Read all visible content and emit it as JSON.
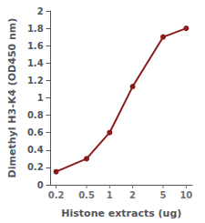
{
  "chart_data": {
    "type": "line",
    "xlabel": "Histone extracts (ug)",
    "ylabel": "Dimethyl H3-K4 (OD450 nm)",
    "x": [
      0.2,
      0.5,
      1,
      2,
      5,
      10
    ],
    "values": [
      0.15,
      0.3,
      0.6,
      1.13,
      1.7,
      1.8
    ],
    "color": "#8B1A1A",
    "marker": "circle",
    "log": "x",
    "xlim": [
      0.17,
      12
    ],
    "xticks": [
      0.2,
      0.5,
      1,
      2,
      5,
      10
    ],
    "ylim": [
      0,
      2
    ],
    "yticks": [
      0,
      0.2,
      0.4,
      0.6,
      0.8,
      1,
      1.2,
      1.4,
      1.6,
      1.8,
      2
    ],
    "grid": false
  }
}
